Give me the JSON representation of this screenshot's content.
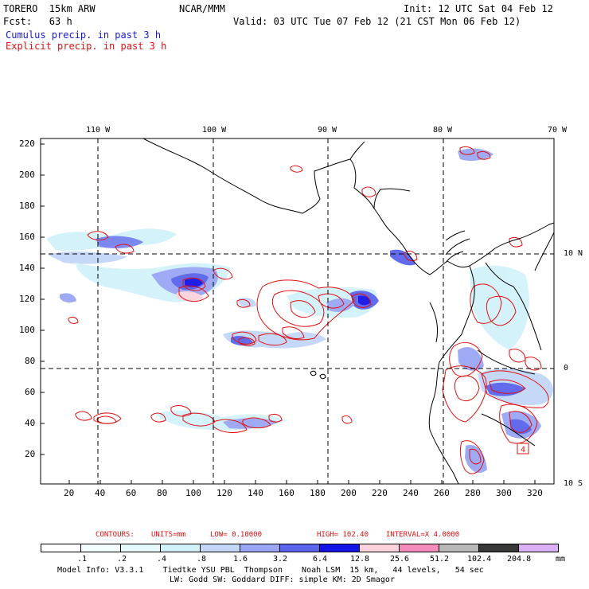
{
  "header": {
    "model": "TORERO  15km ARW",
    "org": "NCAR/MMM",
    "init": "Init: 12 UTC Sat 04 Feb 12",
    "fcst": "Fcst:   63 h",
    "valid": "Valid: 03 UTC Tue 07 Feb 12 (21 CST Mon 06 Feb 12)",
    "line_cumulus": "Cumulus precip. in past 3 h",
    "line_explicit": "Explicit precip. in past 3 h"
  },
  "axes": {
    "lon_labels": [
      "110 W",
      "100 W",
      "90 W",
      "80 W",
      "70 W"
    ],
    "lat_labels": [
      "10 N",
      "0",
      "10 S"
    ],
    "y_ticks": [
      "220",
      "200",
      "180",
      "160",
      "140",
      "120",
      "100",
      "80",
      "60",
      "40",
      "20"
    ],
    "x_ticks": [
      "20",
      "40",
      "60",
      "80",
      "100",
      "120",
      "140",
      "160",
      "180",
      "200",
      "220",
      "240",
      "260",
      "280",
      "300",
      "320"
    ]
  },
  "map_label": "4",
  "contours": {
    "label": "CONTOURS:",
    "units": "UNITS=mm",
    "low": "LOW= 0.10000",
    "high": "HIGH= 102.40",
    "interval": "INTERVAL=X 4.0000"
  },
  "legend": {
    "labels": [
      ".1",
      ".2",
      ".4",
      ".8",
      "1.6",
      "3.2",
      "6.4",
      "12.8",
      "25.6",
      "51.2",
      "102.4",
      "204.8",
      "mm"
    ],
    "colors": [
      "#ffffff",
      "#f4ffff",
      "#e6fafc",
      "#d2f2fa",
      "#c2d6f8",
      "#9aa6f4",
      "#5a64ec",
      "#1414e6",
      "#fcd2dc",
      "#f48cbc",
      "#b8b8b8",
      "#383838",
      "#dcb0f6"
    ]
  },
  "footer": {
    "line1": "Model Info: V3.3.1    Tiedtke YSU PBL  Thompson    Noah LSM  15 km,   44 levels,   54 sec",
    "line2": "LW: Godd SW: Goddard DIFF: simple KM: 2D Smagor"
  }
}
